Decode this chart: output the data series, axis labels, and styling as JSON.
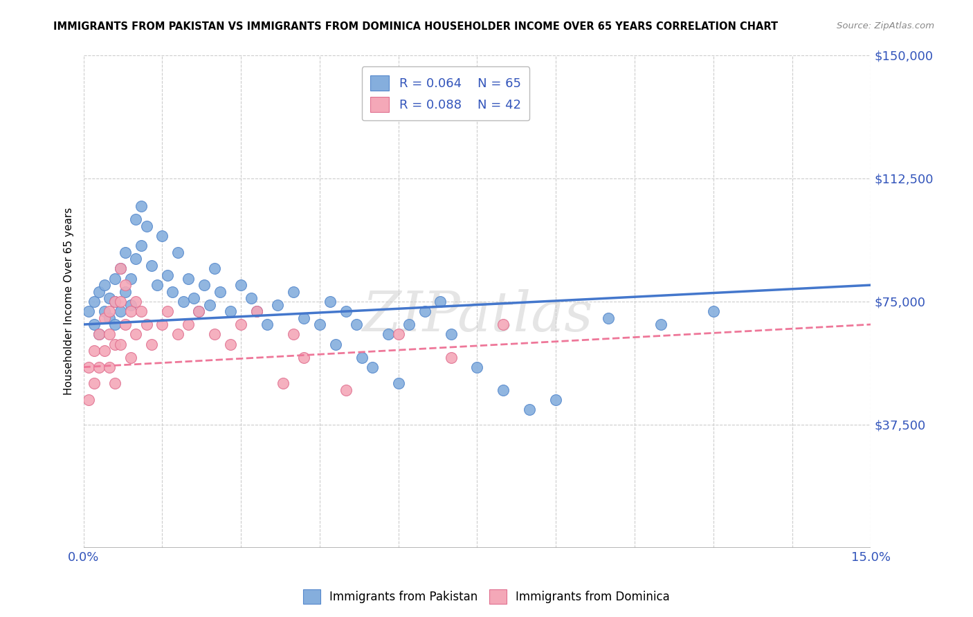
{
  "title": "IMMIGRANTS FROM PAKISTAN VS IMMIGRANTS FROM DOMINICA HOUSEHOLDER INCOME OVER 65 YEARS CORRELATION CHART",
  "source": "Source: ZipAtlas.com",
  "ylabel": "Householder Income Over 65 years",
  "xlim": [
    0,
    0.15
  ],
  "ylim": [
    0,
    150000
  ],
  "ytick_positions": [
    37500,
    75000,
    112500,
    150000
  ],
  "ytick_labels": [
    "$37,500",
    "$75,000",
    "$112,500",
    "$150,000"
  ],
  "pakistan_R": 0.064,
  "pakistan_N": 65,
  "dominica_R": 0.088,
  "dominica_N": 42,
  "blue_scatter": "#85AEDD",
  "pink_scatter": "#F4A8B8",
  "blue_edge": "#5588CC",
  "pink_edge": "#E07090",
  "trend_blue": "#4477CC",
  "trend_pink": "#EE7799",
  "watermark": "ZIPatlas",
  "background_color": "#FFFFFF",
  "grid_color": "#CCCCCC",
  "pk_x": [
    0.001,
    0.002,
    0.002,
    0.003,
    0.003,
    0.004,
    0.004,
    0.005,
    0.005,
    0.006,
    0.006,
    0.006,
    0.007,
    0.007,
    0.008,
    0.008,
    0.009,
    0.009,
    0.01,
    0.01,
    0.011,
    0.011,
    0.012,
    0.013,
    0.014,
    0.015,
    0.016,
    0.017,
    0.018,
    0.019,
    0.02,
    0.021,
    0.022,
    0.023,
    0.024,
    0.025,
    0.026,
    0.028,
    0.03,
    0.032,
    0.033,
    0.035,
    0.037,
    0.04,
    0.042,
    0.045,
    0.047,
    0.048,
    0.05,
    0.052,
    0.053,
    0.055,
    0.058,
    0.06,
    0.062,
    0.065,
    0.068,
    0.07,
    0.075,
    0.08,
    0.085,
    0.09,
    0.1,
    0.11,
    0.12
  ],
  "pk_y": [
    72000,
    75000,
    68000,
    78000,
    65000,
    80000,
    72000,
    76000,
    70000,
    82000,
    75000,
    68000,
    85000,
    72000,
    90000,
    78000,
    82000,
    74000,
    100000,
    88000,
    104000,
    92000,
    98000,
    86000,
    80000,
    95000,
    83000,
    78000,
    90000,
    75000,
    82000,
    76000,
    72000,
    80000,
    74000,
    85000,
    78000,
    72000,
    80000,
    76000,
    72000,
    68000,
    74000,
    78000,
    70000,
    68000,
    75000,
    62000,
    72000,
    68000,
    58000,
    55000,
    65000,
    50000,
    68000,
    72000,
    75000,
    65000,
    55000,
    48000,
    42000,
    45000,
    70000,
    68000,
    72000
  ],
  "dm_x": [
    0.001,
    0.001,
    0.002,
    0.002,
    0.003,
    0.003,
    0.004,
    0.004,
    0.005,
    0.005,
    0.005,
    0.006,
    0.006,
    0.006,
    0.007,
    0.007,
    0.007,
    0.008,
    0.008,
    0.009,
    0.009,
    0.01,
    0.01,
    0.011,
    0.012,
    0.013,
    0.015,
    0.016,
    0.018,
    0.02,
    0.022,
    0.025,
    0.028,
    0.03,
    0.033,
    0.038,
    0.04,
    0.042,
    0.05,
    0.06,
    0.07,
    0.08
  ],
  "dm_y": [
    55000,
    45000,
    60000,
    50000,
    65000,
    55000,
    70000,
    60000,
    72000,
    65000,
    55000,
    75000,
    62000,
    50000,
    85000,
    75000,
    62000,
    80000,
    68000,
    72000,
    58000,
    75000,
    65000,
    72000,
    68000,
    62000,
    68000,
    72000,
    65000,
    68000,
    72000,
    65000,
    62000,
    68000,
    72000,
    50000,
    65000,
    58000,
    48000,
    65000,
    58000,
    68000
  ]
}
